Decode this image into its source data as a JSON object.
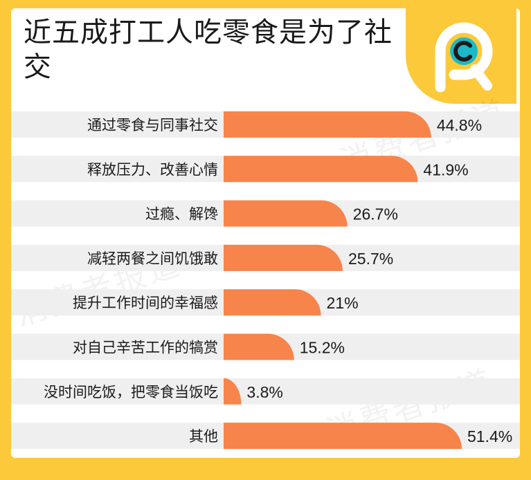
{
  "watermark": "消费者报道",
  "colors": {
    "bar": "#f7844a",
    "row_bg": "#efefef",
    "frame": "#fcc93a",
    "logo_teal": "#1cb8c9"
  },
  "chart_data": {
    "type": "bar",
    "orientation": "horizontal",
    "title": "近五成打工人吃零食是为了社交",
    "categories": [
      "通过零食与同事社交",
      "释放压力、改善心情",
      "过瘾、解馋",
      "减轻两餐之间饥饿敢",
      "提升工作时间的幸福感",
      "对自己辛苦工作的犒赏",
      "没时间吃饭，把零食当饭吃",
      "其他"
    ],
    "values": [
      44.8,
      41.9,
      26.7,
      25.7,
      21,
      15.2,
      3.8,
      51.4
    ],
    "value_labels": [
      "44.8%",
      "41.9%",
      "26.7%",
      "25.7%",
      "21%",
      "15.2%",
      "3.8%",
      "51.4%"
    ],
    "unit": "%",
    "xlim": [
      0,
      51.4
    ],
    "grid": false,
    "legend": "none"
  }
}
